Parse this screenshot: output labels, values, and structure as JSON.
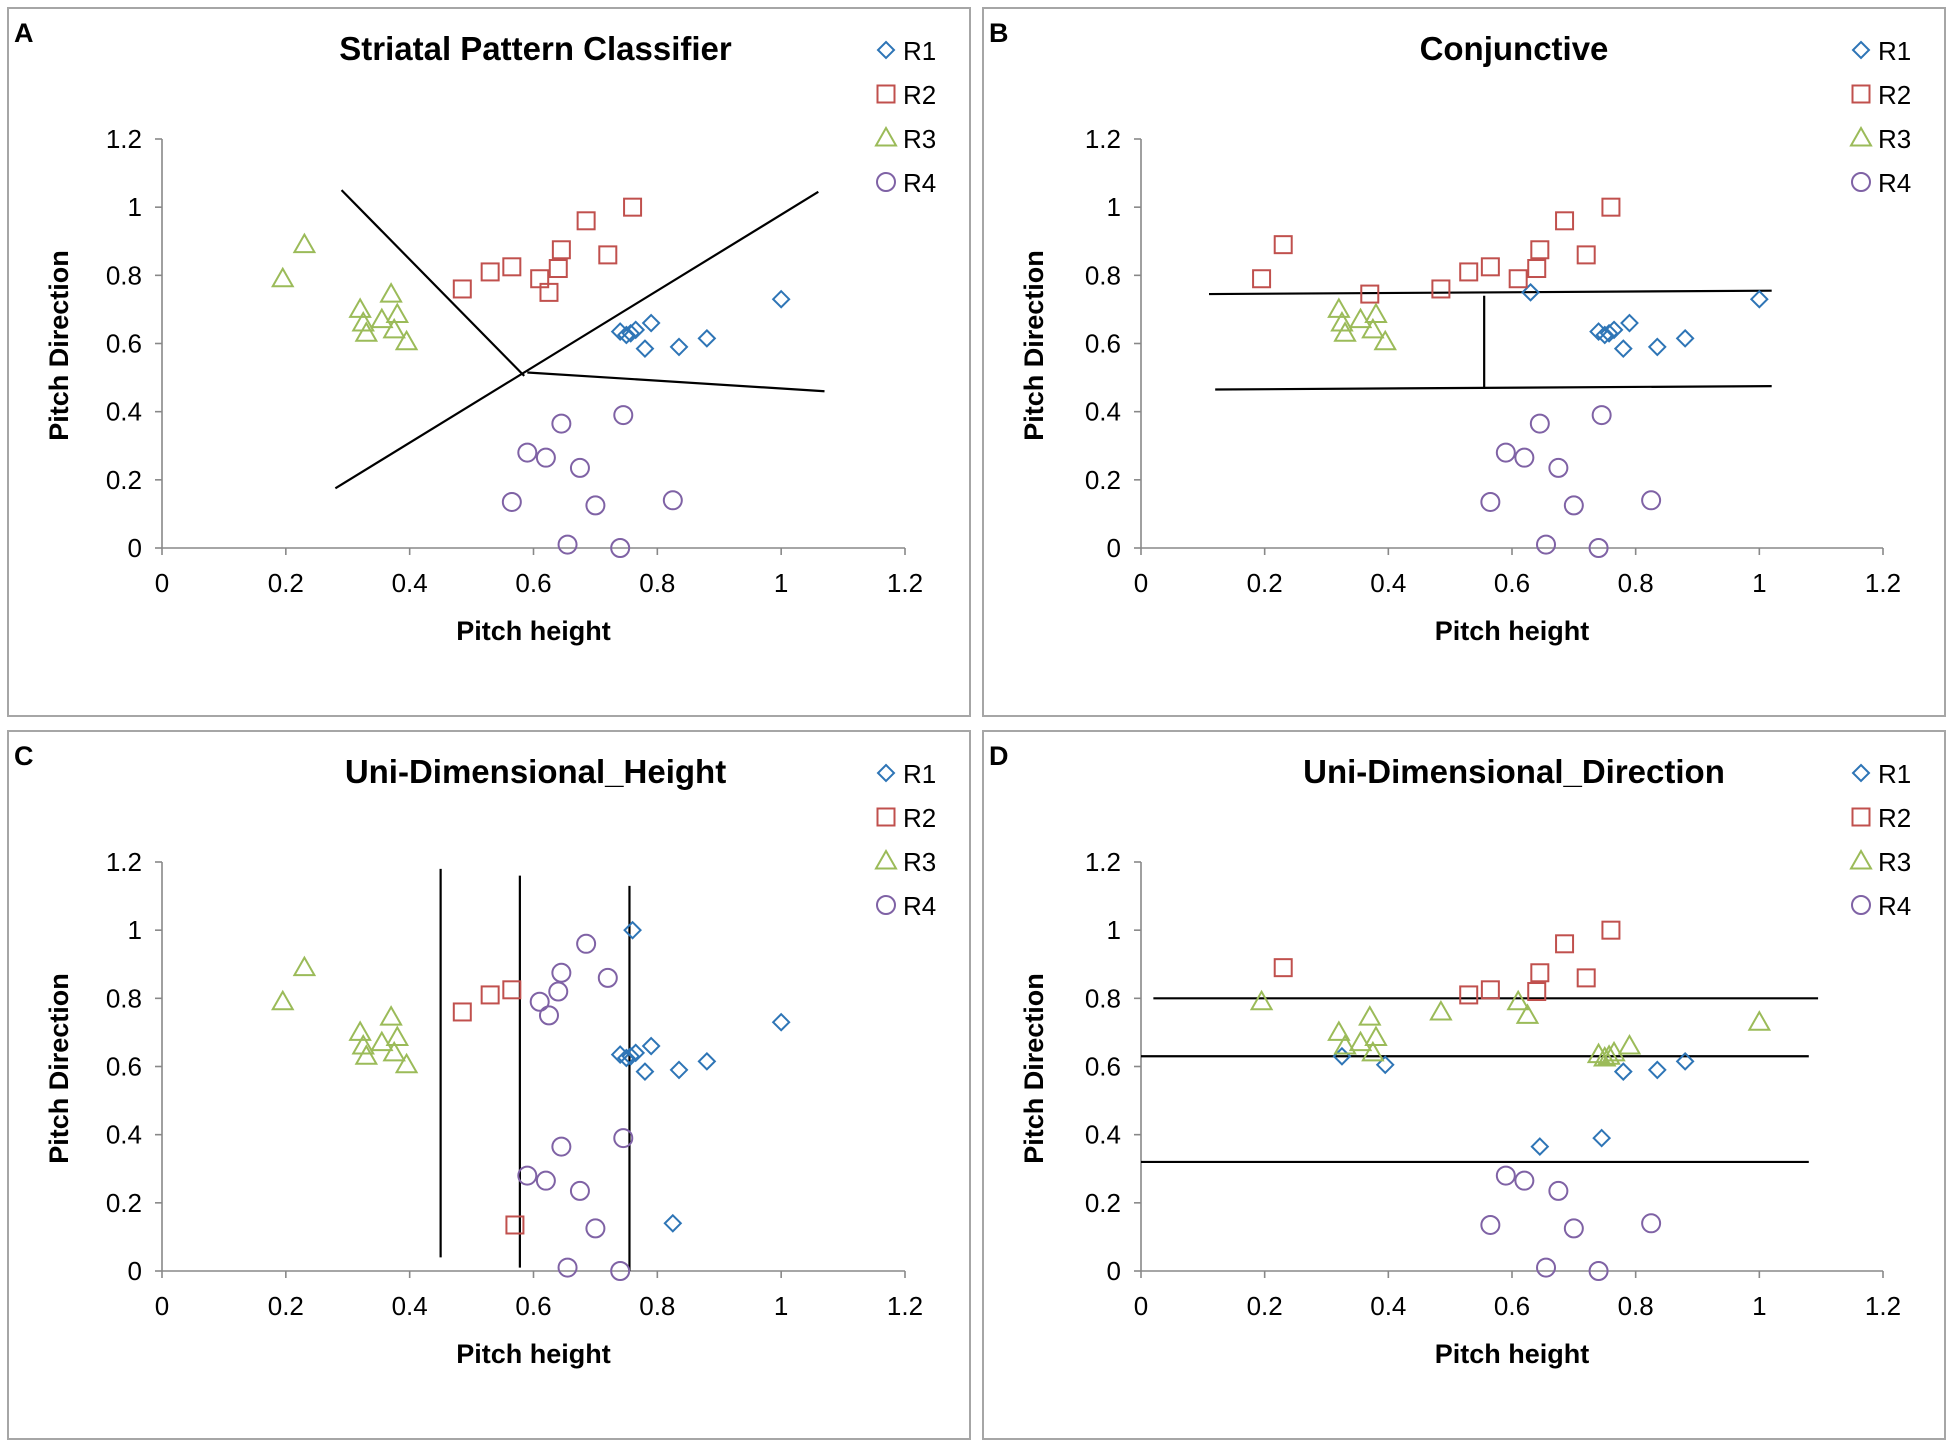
{
  "colors": {
    "R1": "#2e75b6",
    "R2": "#c0504d",
    "R3": "#9bbb59",
    "R4": "#7f62a5"
  },
  "chart_data": [
    {
      "id": "A",
      "panel_label": "A",
      "type": "scatter",
      "title": "Striatal Pattern Classifier",
      "xlabel": "Pitch height",
      "ylabel": "Pitch Direction",
      "xlim": [
        0,
        1.2
      ],
      "ylim": [
        0,
        1.2
      ],
      "xticks": [
        "0",
        "0.2",
        "0.4",
        "0.6",
        "0.8",
        "1",
        "1.2"
      ],
      "yticks": [
        "0",
        "0.2",
        "0.4",
        "0.6",
        "0.8",
        "1",
        "1.2"
      ],
      "legend": [
        "R1",
        "R2",
        "R3",
        "R4"
      ],
      "series": [
        {
          "name": "R1",
          "marker": "diamond",
          "points": [
            [
              0.74,
              0.635
            ],
            [
              0.75,
              0.625
            ],
            [
              0.757,
              0.63
            ],
            [
              0.765,
              0.64
            ],
            [
              0.78,
              0.585
            ],
            [
              0.79,
              0.66
            ],
            [
              0.835,
              0.59
            ],
            [
              0.88,
              0.615
            ],
            [
              1.0,
              0.73
            ]
          ]
        },
        {
          "name": "R2",
          "marker": "square",
          "points": [
            [
              0.485,
              0.76
            ],
            [
              0.53,
              0.81
            ],
            [
              0.565,
              0.825
            ],
            [
              0.61,
              0.79
            ],
            [
              0.625,
              0.75
            ],
            [
              0.64,
              0.82
            ],
            [
              0.645,
              0.875
            ],
            [
              0.685,
              0.96
            ],
            [
              0.72,
              0.86
            ],
            [
              0.76,
              1.0
            ]
          ]
        },
        {
          "name": "R3",
          "marker": "triangle",
          "points": [
            [
              0.195,
              0.79
            ],
            [
              0.23,
              0.89
            ],
            [
              0.32,
              0.7
            ],
            [
              0.325,
              0.66
            ],
            [
              0.33,
              0.63
            ],
            [
              0.355,
              0.67
            ],
            [
              0.37,
              0.745
            ],
            [
              0.375,
              0.64
            ],
            [
              0.38,
              0.685
            ],
            [
              0.395,
              0.605
            ]
          ]
        },
        {
          "name": "R4",
          "marker": "circle",
          "points": [
            [
              0.565,
              0.135
            ],
            [
              0.59,
              0.28
            ],
            [
              0.62,
              0.265
            ],
            [
              0.645,
              0.365
            ],
            [
              0.655,
              0.01
            ],
            [
              0.675,
              0.235
            ],
            [
              0.7,
              0.125
            ],
            [
              0.74,
              0.0
            ],
            [
              0.745,
              0.39
            ],
            [
              0.825,
              0.14
            ]
          ]
        }
      ],
      "boundaries": [
        [
          [
            0.29,
            1.05
          ],
          [
            0.585,
            0.505
          ]
        ],
        [
          [
            0.28,
            0.175
          ],
          [
            1.06,
            1.045
          ]
        ],
        [
          [
            0.59,
            0.515
          ],
          [
            1.07,
            0.46
          ]
        ]
      ]
    },
    {
      "id": "B",
      "panel_label": "B",
      "type": "scatter",
      "title": "Conjunctive",
      "xlabel": "Pitch height",
      "ylabel": "Pitch Direction",
      "xlim": [
        0,
        1.2
      ],
      "ylim": [
        0,
        1.2
      ],
      "xticks": [
        "0",
        "0.2",
        "0.4",
        "0.6",
        "0.8",
        "1",
        "1.2"
      ],
      "yticks": [
        "0",
        "0.2",
        "0.4",
        "0.6",
        "0.8",
        "1",
        "1.2"
      ],
      "legend": [
        "R1",
        "R2",
        "R3",
        "R4"
      ],
      "series": [
        {
          "name": "R1",
          "marker": "diamond",
          "points": [
            [
              0.63,
              0.75
            ],
            [
              0.74,
              0.635
            ],
            [
              0.75,
              0.625
            ],
            [
              0.757,
              0.63
            ],
            [
              0.765,
              0.64
            ],
            [
              0.78,
              0.585
            ],
            [
              0.79,
              0.66
            ],
            [
              0.835,
              0.59
            ],
            [
              0.88,
              0.615
            ],
            [
              1.0,
              0.73
            ]
          ]
        },
        {
          "name": "R2",
          "marker": "square",
          "points": [
            [
              0.195,
              0.79
            ],
            [
              0.23,
              0.89
            ],
            [
              0.37,
              0.745
            ],
            [
              0.485,
              0.76
            ],
            [
              0.53,
              0.81
            ],
            [
              0.565,
              0.825
            ],
            [
              0.61,
              0.79
            ],
            [
              0.64,
              0.82
            ],
            [
              0.645,
              0.875
            ],
            [
              0.685,
              0.96
            ],
            [
              0.72,
              0.86
            ],
            [
              0.76,
              1.0
            ]
          ]
        },
        {
          "name": "R3",
          "marker": "triangle",
          "points": [
            [
              0.32,
              0.7
            ],
            [
              0.325,
              0.66
            ],
            [
              0.33,
              0.63
            ],
            [
              0.355,
              0.67
            ],
            [
              0.375,
              0.64
            ],
            [
              0.38,
              0.685
            ],
            [
              0.395,
              0.605
            ]
          ]
        },
        {
          "name": "R4",
          "marker": "circle",
          "points": [
            [
              0.565,
              0.135
            ],
            [
              0.59,
              0.28
            ],
            [
              0.62,
              0.265
            ],
            [
              0.645,
              0.365
            ],
            [
              0.655,
              0.01
            ],
            [
              0.675,
              0.235
            ],
            [
              0.7,
              0.125
            ],
            [
              0.74,
              0.0
            ],
            [
              0.745,
              0.39
            ],
            [
              0.825,
              0.14
            ]
          ]
        }
      ],
      "boundaries": [
        [
          [
            0.11,
            0.745
          ],
          [
            1.02,
            0.755
          ]
        ],
        [
          [
            0.12,
            0.465
          ],
          [
            1.02,
            0.475
          ]
        ],
        [
          [
            0.555,
            0.74
          ],
          [
            0.555,
            0.47
          ]
        ]
      ]
    },
    {
      "id": "C",
      "panel_label": "C",
      "type": "scatter",
      "title": "Uni-Dimensional_Height",
      "xlabel": "Pitch height",
      "ylabel": "Pitch Direction",
      "xlim": [
        0,
        1.2
      ],
      "ylim": [
        0,
        1.2
      ],
      "xticks": [
        "0",
        "0.2",
        "0.4",
        "0.6",
        "0.8",
        "1",
        "1.2"
      ],
      "yticks": [
        "0",
        "0.2",
        "0.4",
        "0.6",
        "0.8",
        "1",
        "1.2"
      ],
      "legend": [
        "R1",
        "R2",
        "R3",
        "R4"
      ],
      "series": [
        {
          "name": "R1",
          "marker": "diamond",
          "points": [
            [
              0.74,
              0.635
            ],
            [
              0.75,
              0.625
            ],
            [
              0.757,
              0.63
            ],
            [
              0.765,
              0.64
            ],
            [
              0.76,
              1.0
            ],
            [
              0.78,
              0.585
            ],
            [
              0.79,
              0.66
            ],
            [
              0.825,
              0.14
            ],
            [
              0.835,
              0.59
            ],
            [
              0.88,
              0.615
            ],
            [
              1.0,
              0.73
            ]
          ]
        },
        {
          "name": "R2",
          "marker": "square",
          "points": [
            [
              0.485,
              0.76
            ],
            [
              0.53,
              0.81
            ],
            [
              0.565,
              0.825
            ],
            [
              0.57,
              0.135
            ]
          ]
        },
        {
          "name": "R3",
          "marker": "triangle",
          "points": [
            [
              0.195,
              0.79
            ],
            [
              0.23,
              0.89
            ],
            [
              0.32,
              0.7
            ],
            [
              0.325,
              0.66
            ],
            [
              0.33,
              0.63
            ],
            [
              0.355,
              0.67
            ],
            [
              0.37,
              0.745
            ],
            [
              0.375,
              0.64
            ],
            [
              0.38,
              0.685
            ],
            [
              0.395,
              0.605
            ]
          ]
        },
        {
          "name": "R4",
          "marker": "circle",
          "points": [
            [
              0.59,
              0.28
            ],
            [
              0.61,
              0.79
            ],
            [
              0.62,
              0.265
            ],
            [
              0.625,
              0.75
            ],
            [
              0.64,
              0.82
            ],
            [
              0.645,
              0.365
            ],
            [
              0.645,
              0.875
            ],
            [
              0.655,
              0.01
            ],
            [
              0.675,
              0.235
            ],
            [
              0.685,
              0.96
            ],
            [
              0.7,
              0.125
            ],
            [
              0.72,
              0.86
            ],
            [
              0.74,
              0.0
            ],
            [
              0.745,
              0.39
            ]
          ]
        }
      ],
      "boundaries": [
        [
          [
            0.45,
            1.18
          ],
          [
            0.45,
            0.04
          ]
        ],
        [
          [
            0.578,
            1.16
          ],
          [
            0.578,
            0.01
          ]
        ],
        [
          [
            0.755,
            1.13
          ],
          [
            0.755,
            0.0
          ]
        ]
      ]
    },
    {
      "id": "D",
      "panel_label": "D",
      "type": "scatter",
      "title": "Uni-Dimensional_Direction",
      "xlabel": "Pitch height",
      "ylabel": "Pitch Direction",
      "xlim": [
        0,
        1.2
      ],
      "ylim": [
        0,
        1.2
      ],
      "xticks": [
        "0",
        "0.2",
        "0.4",
        "0.6",
        "0.8",
        "1",
        "1.2"
      ],
      "yticks": [
        "0",
        "0.2",
        "0.4",
        "0.6",
        "0.8",
        "1",
        "1.2"
      ],
      "legend": [
        "R1",
        "R2",
        "R3",
        "R4"
      ],
      "series": [
        {
          "name": "R1",
          "marker": "diamond",
          "points": [
            [
              0.325,
              0.63
            ],
            [
              0.395,
              0.605
            ],
            [
              0.645,
              0.365
            ],
            [
              0.745,
              0.39
            ],
            [
              0.78,
              0.585
            ],
            [
              0.835,
              0.59
            ],
            [
              0.88,
              0.615
            ]
          ]
        },
        {
          "name": "R2",
          "marker": "square",
          "points": [
            [
              0.23,
              0.89
            ],
            [
              0.53,
              0.81
            ],
            [
              0.565,
              0.825
            ],
            [
              0.64,
              0.82
            ],
            [
              0.645,
              0.875
            ],
            [
              0.685,
              0.96
            ],
            [
              0.72,
              0.86
            ],
            [
              0.76,
              1.0
            ]
          ]
        },
        {
          "name": "R3",
          "marker": "triangle",
          "points": [
            [
              0.195,
              0.79
            ],
            [
              0.32,
              0.7
            ],
            [
              0.33,
              0.66
            ],
            [
              0.355,
              0.67
            ],
            [
              0.37,
              0.745
            ],
            [
              0.375,
              0.64
            ],
            [
              0.38,
              0.685
            ],
            [
              0.485,
              0.76
            ],
            [
              0.61,
              0.79
            ],
            [
              0.625,
              0.75
            ],
            [
              0.74,
              0.635
            ],
            [
              0.75,
              0.625
            ],
            [
              0.757,
              0.63
            ],
            [
              0.765,
              0.64
            ],
            [
              0.79,
              0.66
            ],
            [
              1.0,
              0.73
            ]
          ]
        },
        {
          "name": "R4",
          "marker": "circle",
          "points": [
            [
              0.565,
              0.135
            ],
            [
              0.59,
              0.28
            ],
            [
              0.62,
              0.265
            ],
            [
              0.655,
              0.01
            ],
            [
              0.675,
              0.235
            ],
            [
              0.7,
              0.125
            ],
            [
              0.74,
              0.0
            ],
            [
              0.825,
              0.14
            ]
          ]
        }
      ],
      "boundaries": [
        [
          [
            0.02,
            0.8
          ],
          [
            1.095,
            0.8
          ]
        ],
        [
          [
            0.0,
            0.63
          ],
          [
            1.08,
            0.63
          ]
        ],
        [
          [
            0.0,
            0.32
          ],
          [
            1.08,
            0.32
          ]
        ]
      ]
    }
  ]
}
